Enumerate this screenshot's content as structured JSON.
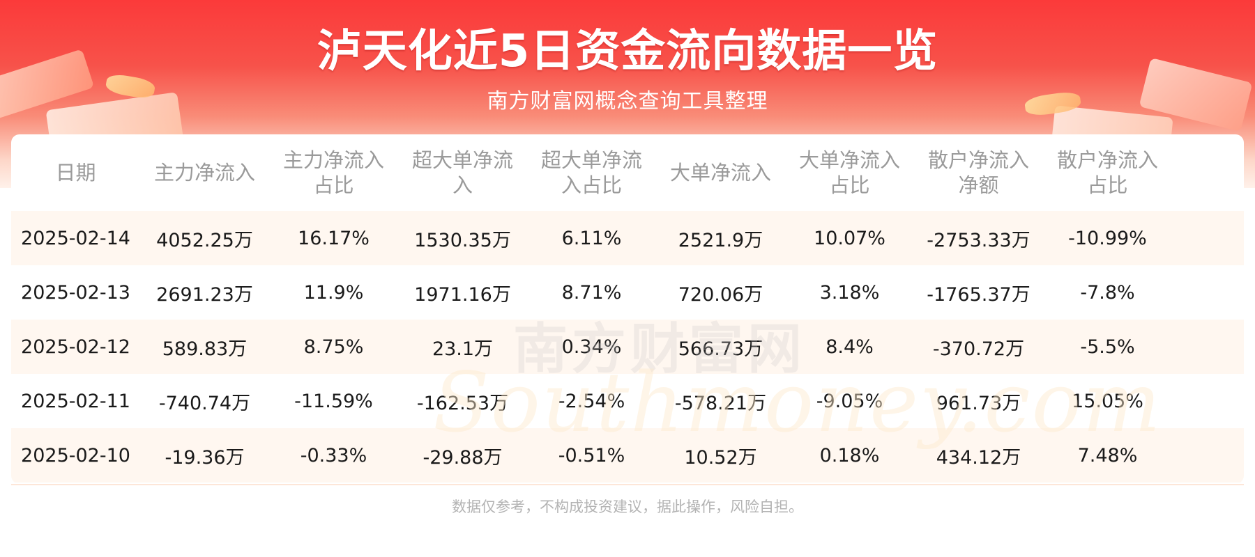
{
  "header": {
    "title": "泸天化近5日资金流向数据一览",
    "subtitle": "南方财富网概念查询工具整理"
  },
  "watermark": {
    "cn": "南方财富网",
    "en": "Southmoney.com"
  },
  "table": {
    "columns": [
      "日期",
      "主力净流入",
      "主力净流入\n占比",
      "超大单净流\n入",
      "超大单净流\n入占比",
      "大单净流入",
      "大单净流入\n占比",
      "散户净流入\n净额",
      "散户净流入\n占比"
    ],
    "rows": [
      [
        "2025-02-14",
        "4052.25万",
        "16.17%",
        "1530.35万",
        "6.11%",
        "2521.9万",
        "10.07%",
        "-2753.33万",
        "-10.99%"
      ],
      [
        "2025-02-13",
        "2691.23万",
        "11.9%",
        "1971.16万",
        "8.71%",
        "720.06万",
        "3.18%",
        "-1765.37万",
        "-7.8%"
      ],
      [
        "2025-02-12",
        "589.83万",
        "8.75%",
        "23.1万",
        "0.34%",
        "566.73万",
        "8.4%",
        "-370.72万",
        "-5.5%"
      ],
      [
        "2025-02-11",
        "-740.74万",
        "-11.59%",
        "-162.53万",
        "-2.54%",
        "-578.21万",
        "-9.05%",
        "961.73万",
        "15.05%"
      ],
      [
        "2025-02-10",
        "-19.36万",
        "-0.33%",
        "-29.88万",
        "-0.51%",
        "10.52万",
        "0.18%",
        "434.12万",
        "7.48%"
      ]
    ]
  },
  "footer": {
    "disclaimer": "数据仅参考，不构成投资建议，据此操作，风险自担。"
  },
  "colors": {
    "banner_red": "#fb3a3a",
    "header_text": "#9a9a9a",
    "row_stripe": "#fff7f0",
    "footer_text": "#b3b3b3"
  }
}
